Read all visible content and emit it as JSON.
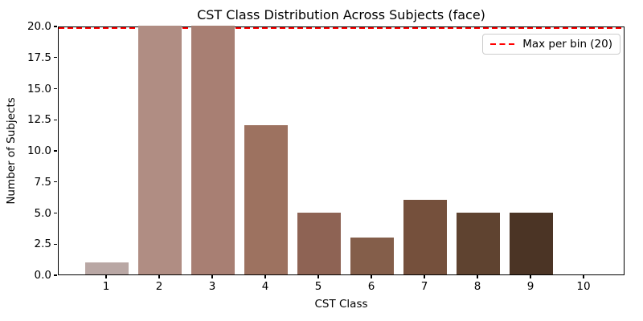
{
  "chart_data": {
    "type": "bar",
    "title": "CST Class Distribution Across Subjects (face)",
    "xlabel": "CST Class",
    "ylabel": "Number of Subjects",
    "categories": [
      "1",
      "2",
      "3",
      "4",
      "5",
      "6",
      "7",
      "8",
      "9",
      "10"
    ],
    "values": [
      1,
      20,
      20,
      12,
      5,
      3,
      6,
      5,
      5,
      0
    ],
    "bar_colors": [
      "#b9a7a4",
      "#b08d83",
      "#a87f73",
      "#9d7260",
      "#8e6354",
      "#845e4a",
      "#75503c",
      "#5f4330",
      "#4b3425",
      "#3a281c"
    ],
    "ylim": [
      0,
      20
    ],
    "y_tick_values": [
      0,
      2.5,
      5,
      7.5,
      10,
      12.5,
      15,
      17.5,
      20
    ],
    "y_tick_labels": [
      "0.0",
      "2.5",
      "5.0",
      "7.5",
      "10.0",
      "12.5",
      "15.0",
      "17.5",
      "20.0"
    ],
    "grid": false,
    "legend_position": "upper right",
    "legend_label": "Max per bin (20)",
    "max_line": {
      "y": 20,
      "color": "#ff0000",
      "style": "dashed"
    }
  },
  "colors": {
    "background": "#ffffff",
    "spine": "#000000",
    "text": "#000000",
    "legend_border": "#cccccc",
    "max_line_red": "#ff0000"
  }
}
